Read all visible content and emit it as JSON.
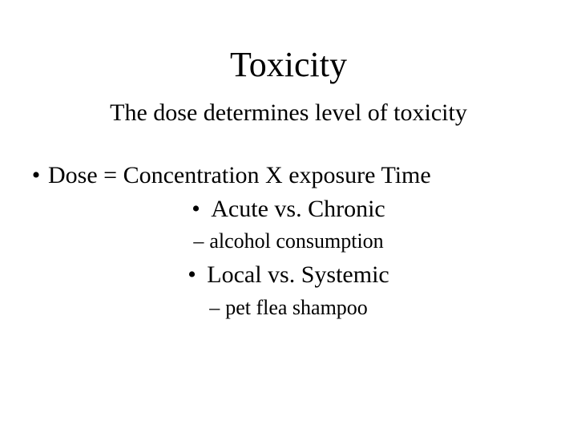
{
  "slide": {
    "title": "Toxicity",
    "subtitle": "The dose determines level of toxicity",
    "bullets": {
      "dose_formula": "Dose = Concentration X exposure Time",
      "acute_chronic": "Acute vs. Chronic",
      "alcohol": "alcohol consumption",
      "local_systemic": "Local vs. Systemic",
      "flea": "pet flea shampoo"
    },
    "markers": {
      "dot": "•",
      "dash": "–"
    }
  },
  "style": {
    "background_color": "#ffffff",
    "text_color": "#000000",
    "font_family": "Times New Roman",
    "title_fontsize": 44,
    "subtitle_fontsize": 30,
    "body_fontsize": 30,
    "sub_fontsize": 26
  }
}
